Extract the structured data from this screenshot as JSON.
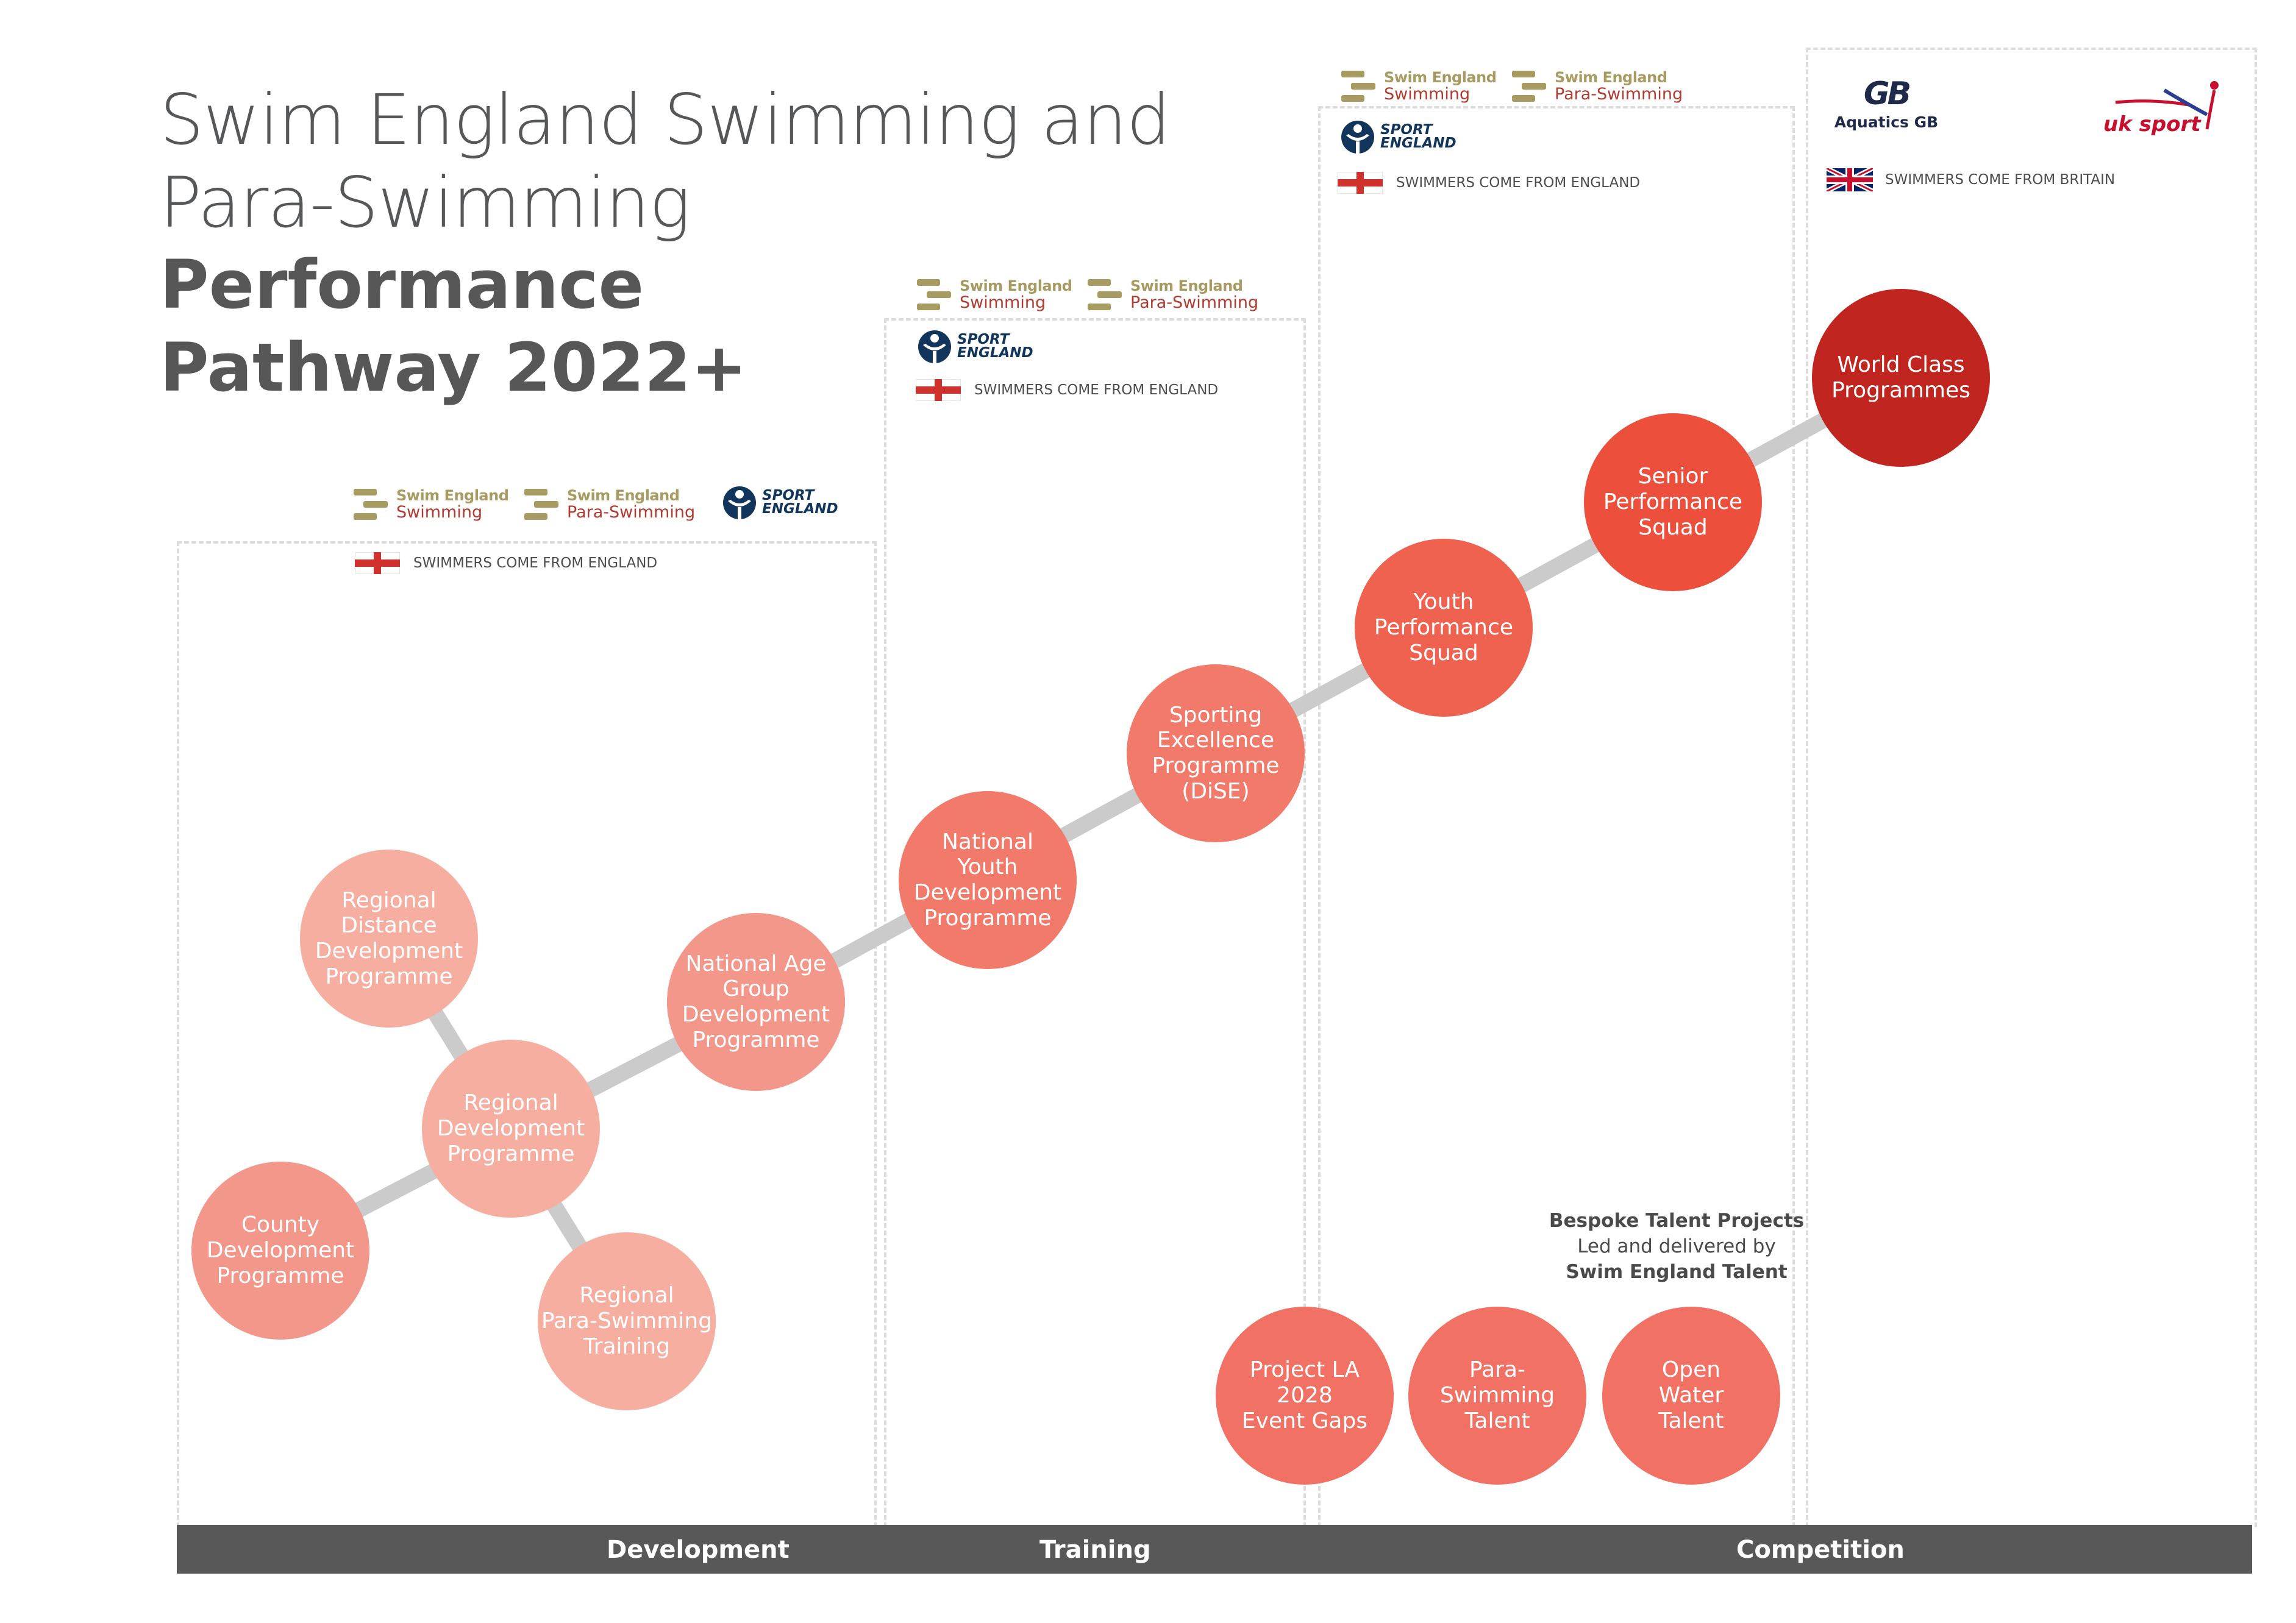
{
  "title": {
    "line1": "Swim England Swimming and",
    "line2": "Para-Swimming",
    "line3": "Performance",
    "line4": "Pathway 2022+"
  },
  "logos": {
    "se_brand": "Swim England",
    "se_swimming": "Swimming",
    "se_para": "Para-Swimming",
    "sport_england_l1": "SPORT",
    "sport_england_l2": "ENGLAND",
    "aquatics_gb_mark": "GB",
    "aquatics_gb": "Aquatics GB",
    "uk_sport": "uk sport"
  },
  "swimmers_england": "SWIMMERS COME FROM ENGLAND",
  "swimmers_britain": "SWIMMERS COME FROM BRITAIN",
  "bubbles": {
    "regional_distance": "Regional\nDistance\nDevelopment\nProgramme",
    "county": "County\nDevelopment\nProgramme",
    "regional_dev": "Regional\nDevelopment\nProgramme",
    "regional_para": "Regional\nPara-Swimming\nTraining",
    "national_age": "National Age\nGroup\nDevelopment\nProgramme",
    "national_youth": "National\nYouth\nDevelopment\nProgramme",
    "sporting_excellence": "Sporting\nExcellence\nProgramme\n(DiSE)",
    "youth_performance": "Youth\nPerformance\nSquad",
    "senior_performance": "Senior\nPerformance\nSquad",
    "world_class": "World Class\nProgrammes",
    "project_la": "Project LA\n2028\nEvent Gaps",
    "para_talent": "Para-\nSwimming\nTalent",
    "open_water": "Open\nWater\nTalent"
  },
  "bespoke": {
    "line1": "Bespoke Talent Projects",
    "line2": "Led and delivered by",
    "line3": "Swim England Talent"
  },
  "stages": {
    "development": "Development",
    "training": "Training",
    "competition": "Competition"
  },
  "colors": {
    "dev_light": "#f6aea1",
    "dev_mid": "#f3978b",
    "training": "#f27a6a",
    "competition": "#ef6250",
    "senior": "#ec4f3c",
    "world_class": "#c0251f",
    "bespoke": "#f17264",
    "connector": "#cbcbcb",
    "bar": "#585858"
  }
}
